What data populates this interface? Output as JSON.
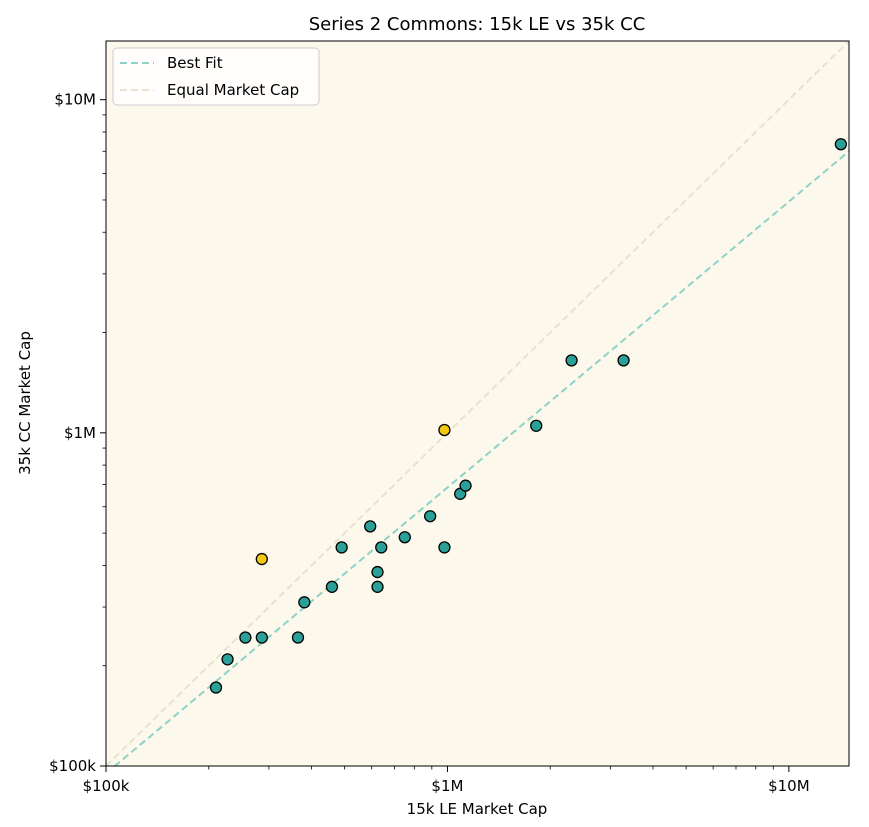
{
  "chart_data": {
    "type": "scatter",
    "title": "Series 2 Commons: 15k LE vs 35k CC",
    "xlabel": "15k LE Market Cap",
    "ylabel": "35k CC Market Cap",
    "xscale": "log",
    "yscale": "log",
    "xlim": [
      100000,
      15000000
    ],
    "ylim": [
      100000,
      15000000
    ],
    "xticks": [
      {
        "value": 100000,
        "label": "$100k"
      },
      {
        "value": 1000000,
        "label": "$1M"
      },
      {
        "value": 10000000,
        "label": "$10M"
      }
    ],
    "yticks": [
      {
        "value": 100000,
        "label": "$100k"
      },
      {
        "value": 1000000,
        "label": "$1M"
      },
      {
        "value": 10000000,
        "label": "$10M"
      }
    ],
    "grid": false,
    "background_color": "#fdf8ec",
    "legend_placement": "top-left",
    "series": [
      {
        "name": "teal points",
        "color": "#2aa198",
        "points": [
          {
            "x": 210000,
            "y": 172000
          },
          {
            "x": 227000,
            "y": 209000
          },
          {
            "x": 256000,
            "y": 243000
          },
          {
            "x": 286000,
            "y": 243000
          },
          {
            "x": 365000,
            "y": 243000
          },
          {
            "x": 381000,
            "y": 310000
          },
          {
            "x": 459000,
            "y": 345000
          },
          {
            "x": 490000,
            "y": 453000
          },
          {
            "x": 594000,
            "y": 524000
          },
          {
            "x": 624000,
            "y": 382000
          },
          {
            "x": 624000,
            "y": 345000
          },
          {
            "x": 640000,
            "y": 453000
          },
          {
            "x": 750000,
            "y": 486000
          },
          {
            "x": 890000,
            "y": 562000
          },
          {
            "x": 980000,
            "y": 453000
          },
          {
            "x": 1090000,
            "y": 656000
          },
          {
            "x": 1130000,
            "y": 694000
          },
          {
            "x": 1820000,
            "y": 1050000
          },
          {
            "x": 2310000,
            "y": 1650000
          },
          {
            "x": 3280000,
            "y": 1650000
          },
          {
            "x": 14200000,
            "y": 7350000
          }
        ]
      },
      {
        "name": "yellow points",
        "color": "#f2c811",
        "points": [
          {
            "x": 286000,
            "y": 418000
          },
          {
            "x": 980000,
            "y": 1020000
          }
        ]
      }
    ],
    "lines": [
      {
        "name": "Best Fit",
        "color": "#8fd3c7",
        "style": "dashed",
        "points": [
          [
            100000,
            95000
          ],
          [
            15000000,
            7000000
          ]
        ]
      },
      {
        "name": "Equal Market Cap",
        "color": "#e6e2d0",
        "style": "dashed",
        "points": [
          [
            100000,
            100000
          ],
          [
            15000000,
            15000000
          ]
        ]
      }
    ]
  }
}
